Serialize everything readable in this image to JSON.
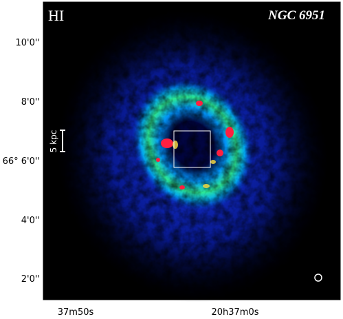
{
  "figure": {
    "title": "NGC 6951",
    "label": "HI",
    "scale_bar": "5 kpc",
    "y_tick_labels": [
      "10'0''",
      "8'0''",
      "66° 6'0''",
      "4'0''",
      "2'0''"
    ],
    "x_tick_labels": [
      "37m50s",
      "20h37m0s"
    ]
  }
}
